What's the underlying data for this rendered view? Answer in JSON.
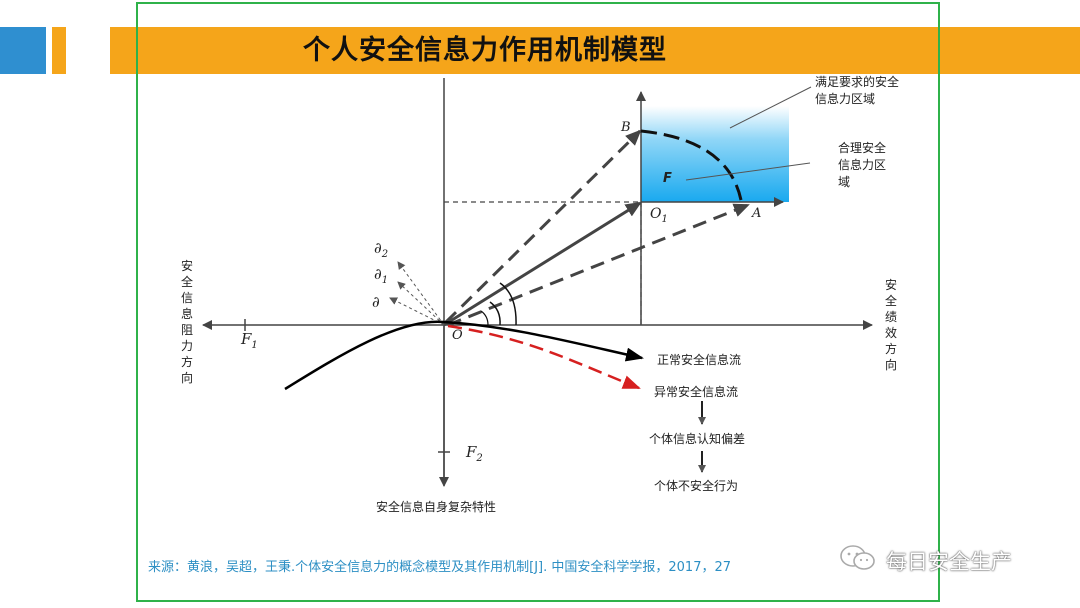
{
  "title": "个人安全信息力作用机制模型",
  "labels": {
    "satisfy_region": "满足要求的安全信息力区域",
    "reasonable_region": "合理安全信息力区域",
    "F": "F",
    "B": "B",
    "A": "A",
    "O1": "O",
    "O1_sub": "1",
    "O": "O",
    "d2": "∂",
    "d2_sub": "2",
    "d1": "∂",
    "d1_sub": "1",
    "d": "∂",
    "F1": "F",
    "F1_sub": "1",
    "F2": "F",
    "F2_sub": "2",
    "left_axis": "安全信息阻力方向",
    "right_axis": "安全绩效方向",
    "bottom_axis": "安全信息自身复杂特性",
    "normal_flow": "正常安全信息流",
    "abnormal_flow": "异常安全信息流",
    "cognition_bias": "个体信息认知偏差",
    "unsafe_behavior": "个体不安全行为"
  },
  "source": "来源：黄浪，吴超，王秉.个体安全信息力的概念模型及其作用机制[J]. 中国安全科学学报，2017，27",
  "watermark": "每日安全生产",
  "colors": {
    "accent_orange": "#f5a51a",
    "accent_blue": "#2f8fd0",
    "frame_green": "#2fb24a",
    "abnormal_red": "#d62020"
  }
}
